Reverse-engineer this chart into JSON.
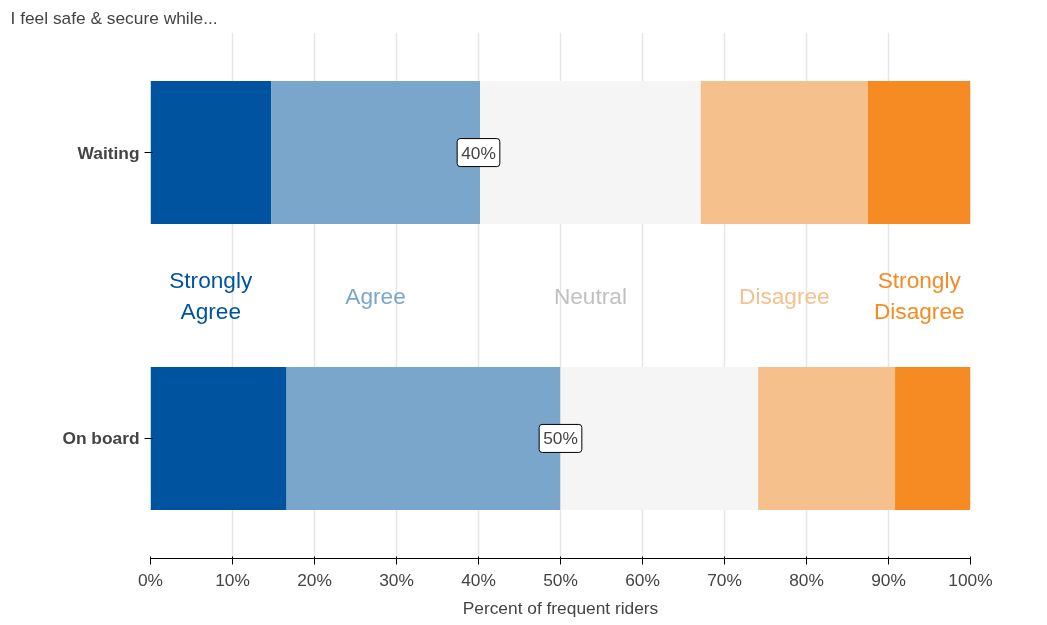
{
  "chart_data": {
    "type": "bar",
    "orientation": "horizontal",
    "stacked": true,
    "title": "I feel safe & secure while...",
    "xlabel": "Percent of frequent riders",
    "categories": [
      "Waiting",
      "On board"
    ],
    "series": [
      {
        "name": "Strongly\nAgree",
        "color": "#00539f",
        "values": [
          14.7,
          16.6
        ]
      },
      {
        "name": "Agree",
        "color": "#7ba6cc",
        "values": [
          25.5,
          33.4
        ]
      },
      {
        "name": "Neutral",
        "color": "#f5f5f5",
        "values": [
          26.9,
          24.1
        ]
      },
      {
        "name": "Disagree",
        "color": "#f5c08b",
        "values": [
          20.4,
          16.7
        ]
      },
      {
        "name": "Strongly\nDisagree",
        "color": "#f58b22",
        "values": [
          12.5,
          9.2
        ]
      }
    ],
    "annotations": [
      {
        "text": "40%",
        "x": 40,
        "y": "Waiting"
      },
      {
        "text": "50%",
        "x": 50,
        "y": "On board"
      }
    ],
    "xlim": [
      0,
      100
    ],
    "xticks": [
      {
        "value": 0,
        "label": "0%"
      },
      {
        "value": 10,
        "label": "10%"
      },
      {
        "value": 20,
        "label": "20%"
      },
      {
        "value": 30,
        "label": "30%"
      },
      {
        "value": 40,
        "label": "40%"
      },
      {
        "value": 50,
        "label": "50%"
      },
      {
        "value": 60,
        "label": "60%"
      },
      {
        "value": 70,
        "label": "70%"
      },
      {
        "value": 80,
        "label": "80%"
      },
      {
        "value": 90,
        "label": "90%"
      },
      {
        "value": 100,
        "label": "100%"
      }
    ],
    "grid": "x",
    "legend": "center"
  }
}
